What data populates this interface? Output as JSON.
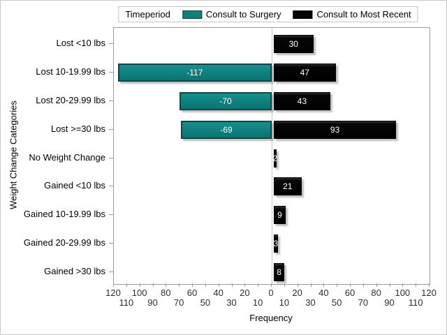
{
  "legend": {
    "title": "Timeperiod",
    "items": [
      {
        "label": "Consult to Surgery",
        "color": "#0e807e",
        "border": "#123f3e"
      },
      {
        "label": "Consult to Most Recent",
        "color": "#050505",
        "border": "#050505"
      }
    ],
    "position": "top-center"
  },
  "chart_data": {
    "type": "bar",
    "variant": "horizontal-diverging-butterfly",
    "title": "",
    "xlabel": "Frequency",
    "ylabel": "Weight Change Categories",
    "categories": [
      "Lost <10 lbs",
      "Lost 10-19.99 lbs",
      "Lost 20-29.99 lbs",
      "Lost >=30 lbs",
      "No Weight Change",
      "Gained <10 lbs",
      "Gained 10-19.99 lbs",
      "Gained 20-29.99 lbs",
      "Gained >30 lbs"
    ],
    "series": [
      {
        "name": "Consult to Surgery",
        "color": "#0e807e",
        "values": [
          null,
          -117,
          -70,
          -69,
          null,
          null,
          null,
          null,
          null
        ]
      },
      {
        "name": "Consult to Most Recent",
        "color": "#050505",
        "values": [
          30,
          47,
          43,
          93,
          2,
          21,
          9,
          3,
          8
        ]
      }
    ],
    "bar_value_labels": "white-centered-inside",
    "xlim": [
      -120,
      120
    ],
    "x_tick_step": 10,
    "x_tick_labels_row1": [
      "120",
      "100",
      "80",
      "60",
      "40",
      "20",
      "0",
      "20",
      "40",
      "60",
      "80",
      "100",
      "120"
    ],
    "x_tick_labels_row2": [
      "110",
      "90",
      "70",
      "50",
      "30",
      "10",
      "10",
      "30",
      "50",
      "70",
      "90",
      "110"
    ],
    "grid": false,
    "zero_line": true,
    "legend_position": "top"
  },
  "colors": {
    "axis": "#9b9b9b",
    "zero_line": "#c9c9c9",
    "frame": "#c8c8c8",
    "text": "#000000",
    "bar_label_text": "#ffffff"
  }
}
